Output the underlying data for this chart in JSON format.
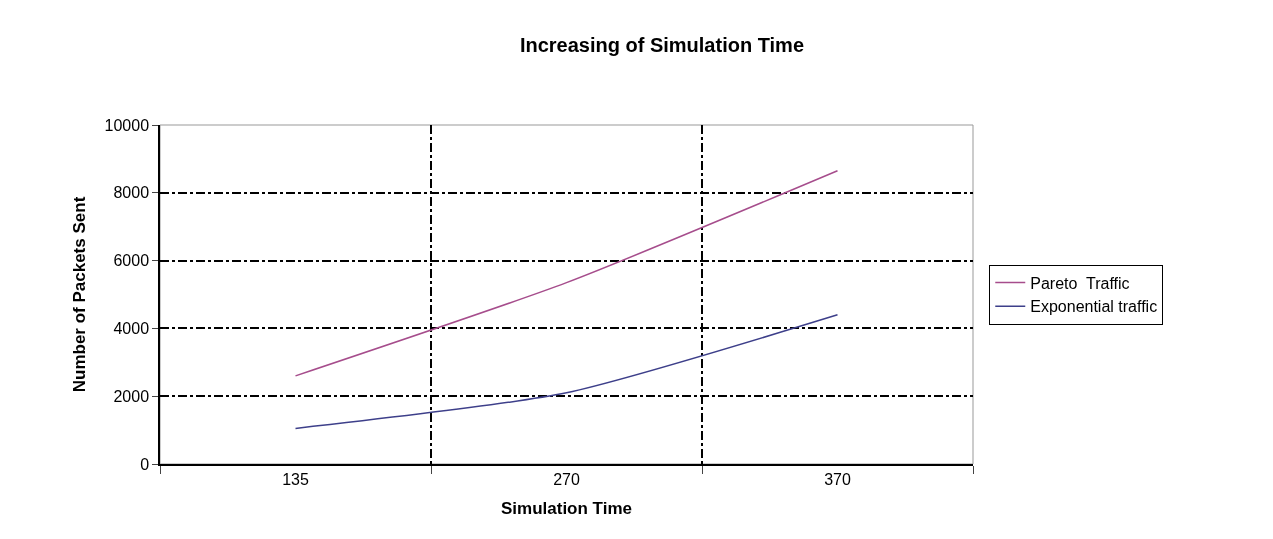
{
  "chart_data": {
    "type": "line",
    "title": "Increasing of Simulation Time",
    "xlabel": "Simulation Time",
    "ylabel": "Number of Packets Sent",
    "categories": [
      "135",
      "270",
      "370"
    ],
    "series": [
      {
        "name": "Pareto  Traffic",
        "color": "#a64d8c",
        "values": [
          2600,
          5350,
          8650
        ]
      },
      {
        "name": "Exponential traffic",
        "color": "#3d3f8a",
        "values": [
          1050,
          2100,
          4400
        ]
      }
    ],
    "ylim": [
      0,
      10000
    ],
    "yticks": [
      0,
      2000,
      4000,
      6000,
      8000,
      10000
    ],
    "grid": true,
    "legend": "right",
    "marker": "none",
    "line_style": "solid"
  }
}
